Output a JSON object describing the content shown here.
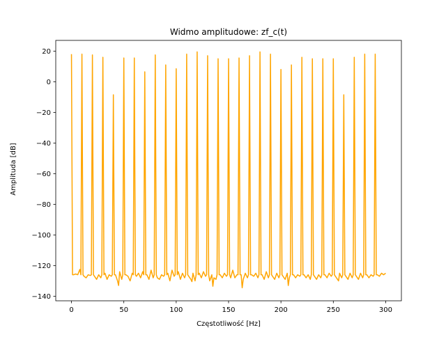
{
  "chart_data": {
    "type": "line",
    "title": "Widmo amplitudowe: zf_c(t)",
    "xlabel": "Częstotliwość [Hz]",
    "ylabel": "Amplituda [dB]",
    "xlim": [
      -15,
      315
    ],
    "ylim": [
      -143,
      27
    ],
    "xticks": [
      0,
      50,
      100,
      150,
      200,
      250,
      300
    ],
    "xtick_labels": [
      "0",
      "50",
      "100",
      "150",
      "200",
      "250",
      "300"
    ],
    "yticks": [
      -140,
      -120,
      -100,
      -80,
      -60,
      -40,
      -20,
      0,
      20
    ],
    "ytick_labels": [
      "−140",
      "−120",
      "−100",
      "−80",
      "−60",
      "−40",
      "−20",
      "0",
      "20"
    ],
    "grid": false,
    "legend": "none",
    "series": [
      {
        "color": "#FFA500",
        "peaks": [
          [
            0,
            18
          ],
          [
            10,
            18
          ],
          [
            20,
            17.5
          ],
          [
            30,
            16
          ],
          [
            40,
            -8.5
          ],
          [
            50,
            15.5
          ],
          [
            60,
            15.5
          ],
          [
            70,
            6.5
          ],
          [
            80,
            17.5
          ],
          [
            90,
            11
          ],
          [
            100,
            8.5
          ],
          [
            110,
            18
          ],
          [
            120,
            19.5
          ],
          [
            130,
            17
          ],
          [
            140,
            15
          ],
          [
            150,
            15
          ],
          [
            160,
            15.5
          ],
          [
            170,
            17
          ],
          [
            180,
            19.5
          ],
          [
            190,
            18
          ],
          [
            200,
            8
          ],
          [
            210,
            11
          ],
          [
            220,
            16
          ],
          [
            230,
            15
          ],
          [
            240,
            15
          ],
          [
            250,
            15
          ],
          [
            260,
            -8.5
          ],
          [
            270,
            16
          ],
          [
            280,
            18
          ],
          [
            290,
            18
          ]
        ],
        "noise_floor": [
          [
            2,
            -126
          ],
          [
            4,
            -125.5
          ],
          [
            6,
            -126
          ],
          [
            8,
            -122.5
          ],
          [
            12,
            -127
          ],
          [
            14,
            -128
          ],
          [
            16,
            -126
          ],
          [
            18,
            -126.5
          ],
          [
            22,
            -127
          ],
          [
            24,
            -129
          ],
          [
            26,
            -126
          ],
          [
            28,
            -128
          ],
          [
            32,
            -125
          ],
          [
            34,
            -129
          ],
          [
            36,
            -126
          ],
          [
            38,
            -127
          ],
          [
            42,
            -126
          ],
          [
            44,
            -130
          ],
          [
            46,
            -124
          ],
          [
            48,
            -129
          ],
          [
            52,
            -126
          ],
          [
            54,
            -127
          ],
          [
            56,
            -130
          ],
          [
            58,
            -125
          ],
          [
            62,
            -127
          ],
          [
            64,
            -125
          ],
          [
            66,
            -128
          ],
          [
            68,
            -124
          ],
          [
            72,
            -126
          ],
          [
            74,
            -129
          ],
          [
            76,
            -123
          ],
          [
            78,
            -128
          ],
          [
            82,
            -128
          ],
          [
            84,
            -129
          ],
          [
            86,
            -126
          ],
          [
            88,
            -127
          ],
          [
            92,
            -125
          ],
          [
            94,
            -130
          ],
          [
            96,
            -123
          ],
          [
            98,
            -127
          ],
          [
            102,
            -124
          ],
          [
            104,
            -129
          ],
          [
            106,
            -125
          ],
          [
            108,
            -128
          ],
          [
            112,
            -127
          ],
          [
            114,
            -129
          ],
          [
            116,
            -125
          ],
          [
            118,
            -130
          ],
          [
            122,
            -125
          ],
          [
            124,
            -128
          ],
          [
            126,
            -124
          ],
          [
            128,
            -127
          ],
          [
            132,
            -130
          ],
          [
            134,
            -126
          ],
          [
            136,
            -128
          ],
          [
            138,
            -129
          ],
          [
            142,
            -126
          ],
          [
            144,
            -128
          ],
          [
            146,
            -125
          ],
          [
            148,
            -127
          ],
          [
            152,
            -128
          ],
          [
            154,
            -123
          ],
          [
            156,
            -128
          ],
          [
            158,
            -126
          ],
          [
            162,
            -126
          ],
          [
            164,
            -129
          ],
          [
            166,
            -125
          ],
          [
            168,
            -128
          ],
          [
            172,
            -126
          ],
          [
            174,
            -127
          ],
          [
            176,
            -125
          ],
          [
            178,
            -128
          ],
          [
            182,
            -126
          ],
          [
            184,
            -129
          ],
          [
            186,
            -124
          ],
          [
            188,
            -128
          ],
          [
            192,
            -127
          ],
          [
            194,
            -129
          ],
          [
            196,
            -125
          ],
          [
            198,
            -128
          ],
          [
            202,
            -127
          ],
          [
            204,
            -129
          ],
          [
            206,
            -125
          ],
          [
            208,
            -128
          ],
          [
            212,
            -126
          ],
          [
            214,
            -128
          ],
          [
            216,
            -126
          ],
          [
            218,
            -127
          ],
          [
            222,
            -126
          ],
          [
            224,
            -128
          ],
          [
            226,
            -126
          ],
          [
            228,
            -129
          ],
          [
            232,
            -127
          ],
          [
            234,
            -129
          ],
          [
            236,
            -126
          ],
          [
            238,
            -128
          ],
          [
            242,
            -126
          ],
          [
            244,
            -128
          ],
          [
            246,
            -125
          ],
          [
            248,
            -127
          ],
          [
            252,
            -127
          ],
          [
            254,
            -129
          ],
          [
            256,
            -125
          ],
          [
            258,
            -128
          ],
          [
            262,
            -127
          ],
          [
            264,
            -129
          ],
          [
            266,
            -125
          ],
          [
            268,
            -128
          ],
          [
            272,
            -127
          ],
          [
            274,
            -129
          ],
          [
            276,
            -125
          ],
          [
            278,
            -128
          ],
          [
            282,
            -126
          ],
          [
            284,
            -128
          ],
          [
            286,
            -126
          ],
          [
            288,
            -127
          ],
          [
            292,
            -126
          ],
          [
            294,
            -127
          ],
          [
            296,
            -125
          ],
          [
            298,
            -126
          ],
          [
            300,
            -125
          ]
        ],
        "extra_dips": [
          [
            45,
            -133
          ],
          [
            115,
            -130.5
          ],
          [
            135,
            -133.5
          ],
          [
            163,
            -134.5
          ],
          [
            207,
            -133
          ],
          [
            255,
            -130
          ]
        ]
      }
    ]
  }
}
